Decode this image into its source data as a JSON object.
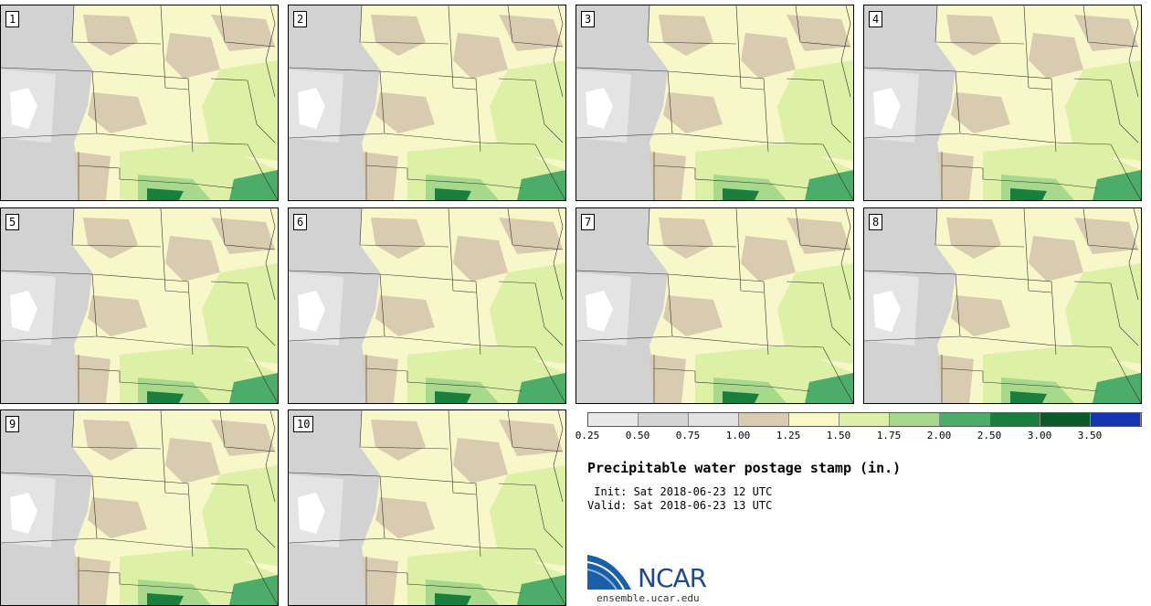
{
  "panels": [
    "1",
    "2",
    "3",
    "4",
    "5",
    "6",
    "7",
    "8",
    "9",
    "10"
  ],
  "legend": {
    "colors": [
      "#e8e8e8",
      "#d4d4d4",
      "#e2e2e2",
      "#d9cbb0",
      "#f9f9c7",
      "#dcf0a6",
      "#a7d98d",
      "#4cac69",
      "#187f3f",
      "#0b5a2a",
      "#1535b0"
    ],
    "labels": [
      "0.25",
      "0.50",
      "0.75",
      "1.00",
      "1.25",
      "1.50",
      "1.75",
      "2.00",
      "2.50",
      "3.00",
      "3.50"
    ]
  },
  "title": "Precipitable water postage stamp (in.)",
  "init_line": " Init: Sat 2018-06-23 12 UTC",
  "valid_line": "Valid: Sat 2018-06-23 13 UTC",
  "logo_text": "NCAR",
  "website": "ensemble.ucar.edu"
}
